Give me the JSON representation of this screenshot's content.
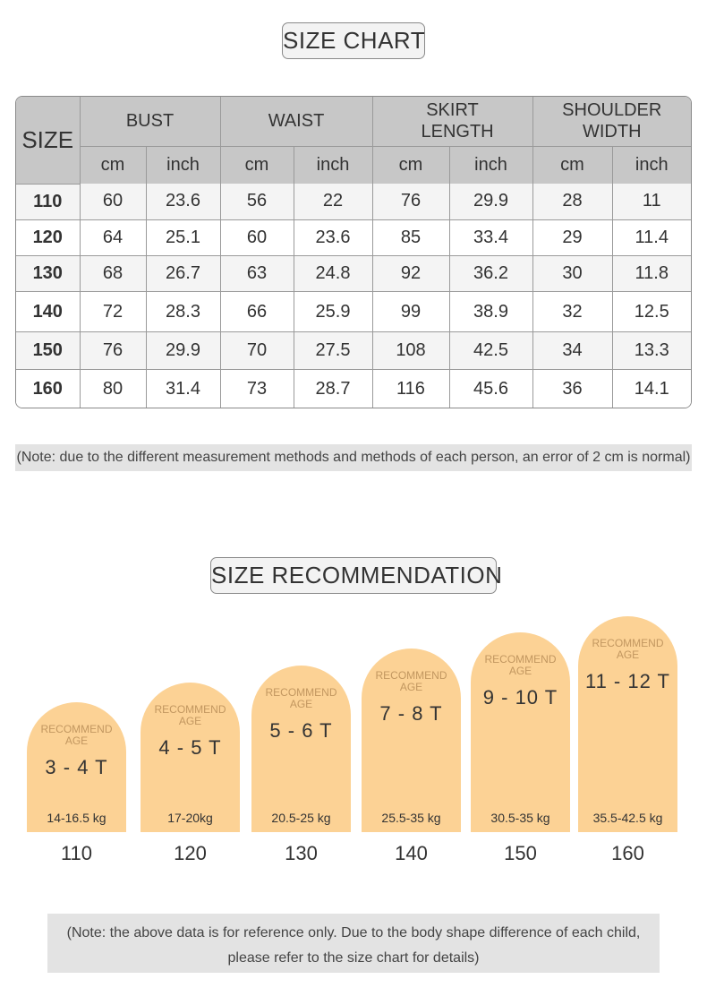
{
  "size_chart": {
    "title": "SIZE CHART",
    "size_header": "SIZE",
    "groups": [
      "BUST",
      "WAIST",
      "SKIRT LENGTH",
      "SHOULDER WIDTH"
    ],
    "units": [
      "cm",
      "inch",
      "cm",
      "inch",
      "cm",
      "inch",
      "cm",
      "inch"
    ],
    "rows": [
      [
        "110",
        "60",
        "23.6",
        "56",
        "22",
        "76",
        "29.9",
        "28",
        "11"
      ],
      [
        "120",
        "64",
        "25.1",
        "60",
        "23.6",
        "85",
        "33.4",
        "29",
        "11.4"
      ],
      [
        "130",
        "68",
        "26.7",
        "63",
        "24.8",
        "92",
        "36.2",
        "30",
        "11.8"
      ],
      [
        "140",
        "72",
        "28.3",
        "66",
        "25.9",
        "99",
        "38.9",
        "32",
        "12.5"
      ],
      [
        "150",
        "76",
        "29.9",
        "70",
        "27.5",
        "108",
        "42.5",
        "34",
        "13.3"
      ],
      [
        "160",
        "80",
        "31.4",
        "73",
        "28.7",
        "116",
        "45.6",
        "36",
        "14.1"
      ]
    ],
    "note": "(Note: due to the different measurement methods and methods of each person, an error of 2 cm is normal)"
  },
  "recommendation": {
    "title": "SIZE RECOMMENDATION",
    "card_label_line1": "RECOMMEND",
    "card_label_line2": "AGE",
    "cards": [
      {
        "age": "3 - 4 T",
        "weight": "14-16.5 kg",
        "size": "110"
      },
      {
        "age": "4 - 5 T",
        "weight": "17-20kg",
        "size": "120"
      },
      {
        "age": "5 - 6 T",
        "weight": "20.5-25 kg",
        "size": "130"
      },
      {
        "age": "7 - 8 T",
        "weight": "25.5-35 kg",
        "size": "140"
      },
      {
        "age": "9 - 10 T",
        "weight": "30.5-35 kg",
        "size": "150"
      },
      {
        "age": "11 - 12 T",
        "weight": "35.5-42.5 kg",
        "size": "160"
      }
    ],
    "note_line1": "(Note: the above data is for reference only. Due to the body shape difference of each child,",
    "note_line2": "please refer to the size chart for details)"
  },
  "colors": {
    "card_fill": "#fcd295",
    "card_label": "#c29760",
    "header_fill": "#c7c7c7",
    "note_fill": "#e3e3e3"
  }
}
